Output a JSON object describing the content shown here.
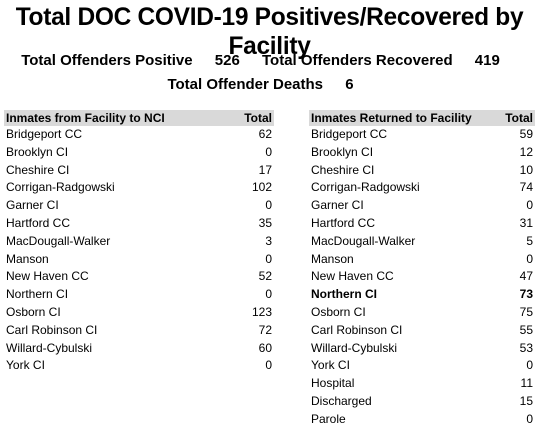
{
  "title": "Total DOC COVID-19 Positives/Recovered by Facility",
  "stats": {
    "positive_label": "Total Offenders Positive",
    "positive_value": "526",
    "recovered_label": "Total Offenders Recovered",
    "recovered_value": "419",
    "deaths_label": "Total Offender Deaths",
    "deaths_value": "6"
  },
  "left_table": {
    "header_name": "Inmates from Facility to NCI",
    "header_total": "Total",
    "rows": [
      {
        "name": "Bridgeport CC",
        "total": "62"
      },
      {
        "name": "Brooklyn CI",
        "total": "0"
      },
      {
        "name": "Cheshire CI",
        "total": "17"
      },
      {
        "name": "Corrigan-Radgowski",
        "total": "102"
      },
      {
        "name": "Garner CI",
        "total": "0"
      },
      {
        "name": "Hartford CC",
        "total": "35"
      },
      {
        "name": "MacDougall-Walker",
        "total": "3"
      },
      {
        "name": "Manson",
        "total": "0"
      },
      {
        "name": "New Haven CC",
        "total": "52"
      },
      {
        "name": "Northern CI",
        "total": "0"
      },
      {
        "name": "Osborn CI",
        "total": "123"
      },
      {
        "name": "Carl Robinson CI",
        "total": "72"
      },
      {
        "name": "Willard-Cybulski",
        "total": "60"
      },
      {
        "name": "York CI",
        "total": "0"
      }
    ]
  },
  "right_table": {
    "header_name": "Inmates Returned to Facility",
    "header_total": "Total",
    "rows": [
      {
        "name": "Bridgeport CC",
        "total": "59"
      },
      {
        "name": "Brooklyn CI",
        "total": "12"
      },
      {
        "name": "Cheshire CI",
        "total": "10"
      },
      {
        "name": "Corrigan-Radgowski",
        "total": "74"
      },
      {
        "name": "Garner CI",
        "total": "0"
      },
      {
        "name": "Hartford CC",
        "total": "31"
      },
      {
        "name": "MacDougall-Walker",
        "total": "5"
      },
      {
        "name": "Manson",
        "total": "0"
      },
      {
        "name": "New Haven CC",
        "total": "47"
      },
      {
        "name": "Northern CI",
        "total": "73"
      },
      {
        "name": "Osborn CI",
        "total": "75"
      },
      {
        "name": "Carl Robinson CI",
        "total": "55"
      },
      {
        "name": "Willard-Cybulski",
        "total": "53"
      },
      {
        "name": "York CI",
        "total": "0"
      },
      {
        "name": "Hospital",
        "total": "11"
      },
      {
        "name": "Discharged",
        "total": "15"
      },
      {
        "name": "Parole",
        "total": "0"
      }
    ]
  },
  "colors": {
    "header_bg": "#d9d9d9",
    "text": "#000000",
    "background": "#ffffff"
  }
}
